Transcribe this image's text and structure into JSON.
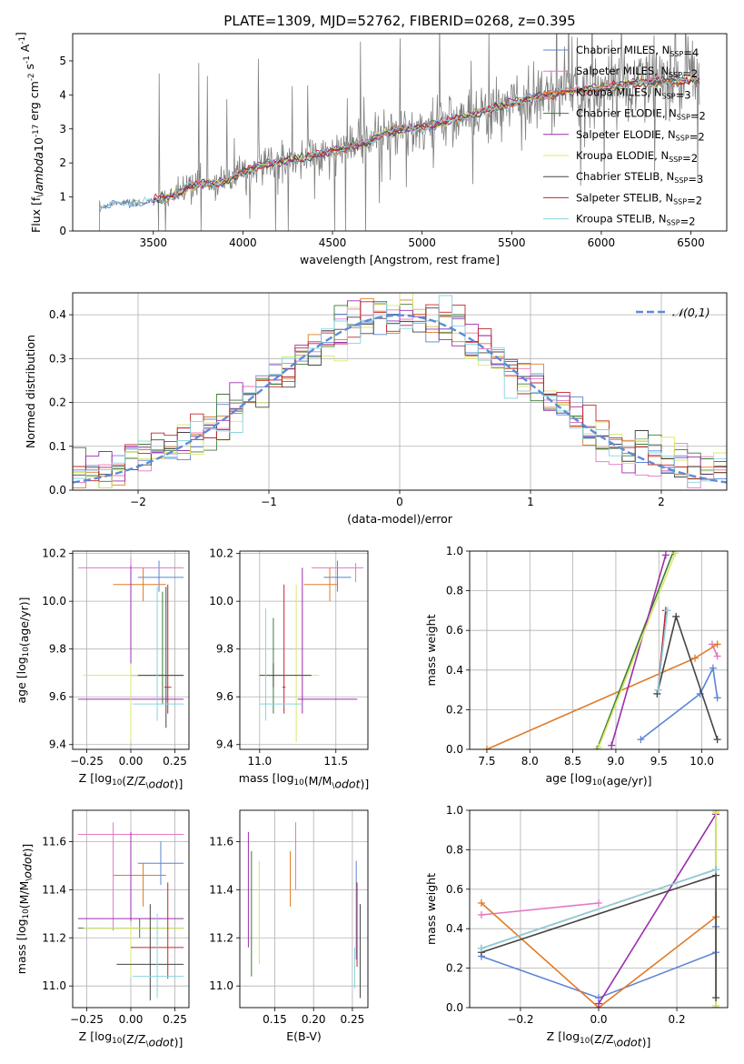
{
  "figure": {
    "title": "PLATE=1309, MJD=52762, FIBERID=0268, z=0.395"
  },
  "colors": {
    "Chabrier MILES": "#5b84d4",
    "Salpeter MILES": "#e377c2",
    "Kroupa MILES": "#e07b27",
    "Chabrier ELODIE": "#3d7a34",
    "Salpeter ELODIE": "#9b2fae",
    "Kroupa ELODIE": "#d8e868",
    "Chabrier STELIB": "#444444",
    "Salpeter STELIB": "#c0272d",
    "Kroupa STELIB": "#88d4e0",
    "gaussian": "#5b8bd8",
    "grid": "#b0b0b0",
    "data": "#808080"
  },
  "chart_data": [
    {
      "id": "spectrum",
      "type": "line",
      "xlabel": "wavelength [Angstrom, rest frame]",
      "ylabel": "Flux [f$_\\lambda$10$^{-17}$ erg cm$^{-2}$ s$^{-1}$ A$^{-1}$]",
      "xlim": [
        3050,
        6700
      ],
      "ylim": [
        0,
        5.8
      ],
      "xticks": [
        3500,
        4000,
        4500,
        5000,
        5500,
        6000,
        6500
      ],
      "yticks": [
        0,
        1,
        2,
        3,
        4,
        5
      ],
      "grid": false,
      "legend_position": "right",
      "model_trend": [
        [
          3200,
          0.7
        ],
        [
          3300,
          0.85
        ],
        [
          3400,
          0.8
        ],
        [
          3500,
          0.9
        ],
        [
          3600,
          1.0
        ],
        [
          3700,
          1.3
        ],
        [
          3800,
          1.4
        ],
        [
          3900,
          1.45
        ],
        [
          4000,
          1.7
        ],
        [
          4100,
          1.95
        ],
        [
          4300,
          2.1
        ],
        [
          4500,
          2.35
        ],
        [
          4700,
          2.6
        ],
        [
          4800,
          2.9
        ],
        [
          5000,
          3.05
        ],
        [
          5200,
          3.3
        ],
        [
          5400,
          3.6
        ],
        [
          5600,
          3.9
        ],
        [
          5800,
          4.1
        ],
        [
          6000,
          4.2
        ],
        [
          6200,
          4.35
        ],
        [
          6400,
          4.4
        ],
        [
          6550,
          4.45
        ]
      ],
      "legend": [
        {
          "label": "Chabrier MILES, N$_{SSP}$=4",
          "color": "Chabrier MILES"
        },
        {
          "label": "Salpeter MILES, N$_{SSP}$=2",
          "color": "Salpeter MILES"
        },
        {
          "label": "Kroupa MILES, N$_{SSP}$=3",
          "color": "Kroupa MILES"
        },
        {
          "label": "Chabrier ELODIE, N$_{SSP}$=2",
          "color": "Chabrier ELODIE"
        },
        {
          "label": "Salpeter ELODIE, N$_{SSP}$=2",
          "color": "Salpeter ELODIE"
        },
        {
          "label": "Kroupa ELODIE, N$_{SSP}$=2",
          "color": "Kroupa ELODIE"
        },
        {
          "label": "Chabrier STELIB, N$_{SSP}$=3",
          "color": "Chabrier STELIB"
        },
        {
          "label": "Salpeter STELIB, N$_{SSP}$=2",
          "color": "Salpeter STELIB"
        },
        {
          "label": "Kroupa STELIB, N$_{SSP}$=2",
          "color": "Kroupa STELIB"
        }
      ]
    },
    {
      "id": "residuals",
      "type": "line",
      "xlabel": "(data-model)/error",
      "ylabel": "Normed distribution",
      "xlim": [
        -2.5,
        2.5
      ],
      "ylim": [
        0,
        0.45
      ],
      "xticks": [
        -2,
        -1,
        0,
        1,
        2
      ],
      "yticks": [
        0.0,
        0.1,
        0.2,
        0.3,
        0.4
      ],
      "grid": true,
      "legend_position": "top-right",
      "gaussian_label": "$\\mathcal{N}(0,1)$",
      "bin_width": 0.1
    },
    {
      "id": "age_vs_Z",
      "type": "scatter",
      "xlabel": "Z [log$_{10}$(Z/Z$_\\odot$)]",
      "ylabel": "age  [log$_{10}$(age/yr)]",
      "xlim": [
        -0.33,
        0.33
      ],
      "ylim": [
        9.38,
        10.21
      ],
      "xticks": [
        -0.25,
        0.0,
        0.25
      ],
      "yticks": [
        9.4,
        9.6,
        9.8,
        10.0,
        10.2
      ],
      "grid": true,
      "points": [
        {
          "s": "Chabrier MILES",
          "x": 0.16,
          "xl": 0.12,
          "xh": 0.14,
          "y": 10.1,
          "yl": 0.06,
          "yh": 0.07
        },
        {
          "s": "Salpeter MILES",
          "x": 0.0,
          "xl": 0.3,
          "xh": 0.3,
          "y": 10.14,
          "yl": 0.1,
          "yh": 0.04
        },
        {
          "s": "Kroupa MILES",
          "x": 0.07,
          "xl": 0.17,
          "xh": 0.13,
          "y": 10.07,
          "yl": 0.07,
          "yh": 0.07
        },
        {
          "s": "Chabrier ELODIE",
          "x": 0.18,
          "xl": 0.18,
          "xh": 0.12,
          "y": 9.69,
          "yl": 0.12,
          "yh": 0.35
        },
        {
          "s": "Salpeter ELODIE",
          "x": 0.0,
          "xl": 0.3,
          "xh": 0.3,
          "y": 9.59,
          "yl": 0.06,
          "yh": 0.56
        },
        {
          "s": "Kroupa ELODIE",
          "x": 0.0,
          "xl": 0.27,
          "xh": 0.3,
          "y": 9.69,
          "yl": 0.28,
          "yh": 0.05
        },
        {
          "s": "Chabrier STELIB",
          "x": 0.2,
          "xl": 0.16,
          "xh": 0.1,
          "y": 9.69,
          "yl": 0.22,
          "yh": 0.37
        },
        {
          "s": "Salpeter STELIB",
          "x": 0.21,
          "xl": 0.02,
          "xh": 0.02,
          "y": 9.64,
          "yl": 0.11,
          "yh": 0.43
        },
        {
          "s": "Kroupa STELIB",
          "x": 0.15,
          "xl": 0.14,
          "xh": 0.15,
          "y": 9.57,
          "yl": 0.07,
          "yh": 0.49
        }
      ]
    },
    {
      "id": "age_vs_mass",
      "type": "scatter",
      "xlabel": "mass [log$_{10}$(M/M$_\\odot$)]",
      "ylabel": "",
      "xlim": [
        10.87,
        11.71
      ],
      "ylim": [
        9.38,
        10.21
      ],
      "xticks": [
        11.0,
        11.5
      ],
      "yticks": [
        9.4,
        9.6,
        9.8,
        10.0,
        10.2
      ],
      "grid": true,
      "points": [
        {
          "s": "Chabrier MILES",
          "x": 11.51,
          "xl": 0.09,
          "xh": 0.09,
          "y": 10.1,
          "yl": 0.06,
          "yh": 0.07
        },
        {
          "s": "Salpeter MILES",
          "x": 11.63,
          "xl": 0.29,
          "xh": 0.05,
          "y": 10.14,
          "yl": 0.06,
          "yh": 0.02
        },
        {
          "s": "Kroupa MILES",
          "x": 11.46,
          "xl": 0.17,
          "xh": 0.05,
          "y": 10.07,
          "yl": 0.07,
          "yh": 0.07
        },
        {
          "s": "Chabrier ELODIE",
          "x": 11.09,
          "xl": 0.03,
          "xh": 0.01,
          "y": 9.69,
          "yl": 0.16,
          "yh": 0.24
        },
        {
          "s": "Salpeter ELODIE",
          "x": 11.28,
          "xl": 0.03,
          "xh": 0.36,
          "y": 9.59,
          "yl": 0.06,
          "yh": 0.55
        },
        {
          "s": "Kroupa ELODIE",
          "x": 11.24,
          "xl": 0.25,
          "xh": 0.15,
          "y": 9.69,
          "yl": 0.28,
          "yh": 0.38
        },
        {
          "s": "Chabrier STELIB",
          "x": 11.09,
          "xl": 0.09,
          "xh": 0.25,
          "y": 9.69,
          "yl": 0.05,
          "yh": 0.05
        },
        {
          "s": "Salpeter STELIB",
          "x": 11.16,
          "xl": 0.01,
          "xh": 0.01,
          "y": 9.64,
          "yl": 0.11,
          "yh": 0.43
        },
        {
          "s": "Kroupa STELIB",
          "x": 11.04,
          "xl": 0.04,
          "xh": 0.24,
          "y": 9.57,
          "yl": 0.07,
          "yh": 0.4
        }
      ]
    },
    {
      "id": "massweight_vs_age",
      "type": "line",
      "xlabel": "age  [log$_{10}$(age/yr)]",
      "ylabel": "mass weight",
      "xlim": [
        7.3,
        10.3
      ],
      "ylim": [
        0,
        1.0
      ],
      "xticks": [
        7.5,
        8.0,
        8.5,
        9.0,
        9.5,
        10.0
      ],
      "yticks": [
        0.0,
        0.2,
        0.4,
        0.6,
        0.8,
        1.0
      ],
      "grid": true,
      "series": [
        {
          "s": "Chabrier MILES",
          "x": [
            9.29,
            9.98,
            10.13,
            10.18
          ],
          "y": [
            0.05,
            0.28,
            0.41,
            0.26
          ]
        },
        {
          "s": "Salpeter MILES",
          "x": [
            10.12,
            10.18
          ],
          "y": [
            0.53,
            0.47
          ]
        },
        {
          "s": "Kroupa MILES",
          "x": [
            7.5,
            9.92,
            10.18
          ],
          "y": [
            0.0,
            0.46,
            0.53
          ]
        },
        {
          "s": "Chabrier ELODIE",
          "x": [
            8.78,
            9.67
          ],
          "y": [
            0.0,
            1.0
          ]
        },
        {
          "s": "Salpeter ELODIE",
          "x": [
            8.95,
            9.58
          ],
          "y": [
            0.02,
            0.98
          ]
        },
        {
          "s": "Kroupa ELODIE",
          "x": [
            8.8,
            9.69
          ],
          "y": [
            0.01,
            0.99
          ]
        },
        {
          "s": "Chabrier STELIB",
          "x": [
            9.48,
            9.7,
            10.18
          ],
          "y": [
            0.28,
            0.67,
            0.05
          ]
        },
        {
          "s": "Salpeter STELIB",
          "x": [
            9.49,
            9.58
          ],
          "y": [
            0.3,
            0.7
          ]
        },
        {
          "s": "Kroupa STELIB",
          "x": [
            9.49,
            9.6
          ],
          "y": [
            0.3,
            0.7
          ]
        }
      ]
    },
    {
      "id": "mass_vs_Z",
      "type": "scatter",
      "xlabel": "Z [log$_{10}$(Z/Z$_\\odot$)]",
      "ylabel": "mass [log$_{10}$(M/M$_\\odot$)]",
      "xlim": [
        -0.33,
        0.33
      ],
      "ylim": [
        10.91,
        11.73
      ],
      "xticks": [
        -0.25,
        0.0,
        0.25
      ],
      "yticks": [
        11.0,
        11.2,
        11.4,
        11.6
      ],
      "grid": true,
      "points": [
        {
          "s": "Chabrier MILES",
          "x": 0.17,
          "xl": 0.13,
          "xh": 0.13,
          "y": 11.51,
          "yl": 0.09,
          "yh": 0.09
        },
        {
          "s": "Salpeter MILES",
          "x": -0.1,
          "xl": 0.2,
          "xh": 0.4,
          "y": 11.63,
          "yl": 0.4,
          "yh": 0.05
        },
        {
          "s": "Kroupa MILES",
          "x": 0.07,
          "xl": 0.17,
          "xh": 0.13,
          "y": 11.46,
          "yl": 0.13,
          "yh": 0.05
        },
        {
          "s": "Chabrier ELODIE",
          "x": 0.05,
          "xl": 0.35,
          "xh": 0.25,
          "y": 11.24,
          "yl": 0.04,
          "yh": 0.04
        },
        {
          "s": "Salpeter ELODIE",
          "x": 0.0,
          "xl": 0.3,
          "xh": 0.3,
          "y": 11.28,
          "yl": 0.01,
          "yh": 0.36
        },
        {
          "s": "Kroupa ELODIE",
          "x": 0.0,
          "xl": 0.27,
          "xh": 0.3,
          "y": 11.24,
          "yl": 0.2,
          "yh": 0.01
        },
        {
          "s": "Chabrier STELIB",
          "x": 0.11,
          "xl": 0.19,
          "xh": 0.19,
          "y": 11.09,
          "yl": 0.15,
          "yh": 0.25
        },
        {
          "s": "Salpeter STELIB",
          "x": 0.21,
          "xl": 0.21,
          "xh": 0.09,
          "y": 11.16,
          "yl": 0.13,
          "yh": 0.27
        },
        {
          "s": "Kroupa STELIB",
          "x": 0.15,
          "xl": 0.14,
          "xh": 0.15,
          "y": 11.04,
          "yl": 0.09,
          "yh": 0.26
        }
      ]
    },
    {
      "id": "mass_vs_ebv",
      "type": "scatter",
      "xlabel": "E(B-V)",
      "ylabel": "",
      "xlim": [
        0.105,
        0.27
      ],
      "ylim": [
        10.91,
        11.73
      ],
      "xticks": [
        0.15,
        0.2,
        0.25
      ],
      "yticks": [
        11.0,
        11.2,
        11.4,
        11.6
      ],
      "grid": true,
      "points": [
        {
          "s": "Chabrier MILES",
          "x": 0.255,
          "xl": 0,
          "xh": 0,
          "y": 11.51,
          "yl": 0.4,
          "yh": 0.01
        },
        {
          "s": "Salpeter MILES",
          "x": 0.177,
          "xl": 0,
          "xh": 0,
          "y": 11.63,
          "yl": 0.23,
          "yh": 0.05
        },
        {
          "s": "Kroupa MILES",
          "x": 0.17,
          "xl": 0,
          "xh": 0,
          "y": 11.46,
          "yl": 0.13,
          "yh": 0.1
        },
        {
          "s": "Chabrier ELODIE",
          "x": 0.12,
          "xl": 0,
          "xh": 0,
          "y": 11.24,
          "yl": 0.2,
          "yh": 0.32
        },
        {
          "s": "Salpeter ELODIE",
          "x": 0.116,
          "xl": 0,
          "xh": 0,
          "y": 11.28,
          "yl": 0.12,
          "yh": 0.36
        },
        {
          "s": "Kroupa ELODIE",
          "x": 0.13,
          "xl": 0,
          "xh": 0,
          "y": 11.24,
          "yl": 0.15,
          "yh": 0.28
        },
        {
          "s": "Chabrier STELIB",
          "x": 0.26,
          "xl": 0,
          "xh": 0,
          "y": 11.09,
          "yl": 0.14,
          "yh": 0.25
        },
        {
          "s": "Salpeter STELIB",
          "x": 0.256,
          "xl": 0,
          "xh": 0,
          "y": 11.16,
          "yl": 0.08,
          "yh": 0.27
        },
        {
          "s": "Kroupa STELIB",
          "x": 0.253,
          "xl": 0,
          "xh": 0,
          "y": 11.04,
          "yl": 0.05,
          "yh": 0.12
        }
      ]
    },
    {
      "id": "massweight_vs_Z",
      "type": "line",
      "xlabel": "Z [log$_{10}$(Z/Z$_\\odot$)]",
      "ylabel": "mass weight",
      "xlim": [
        -0.33,
        0.33
      ],
      "ylim": [
        0,
        1.0
      ],
      "xticks": [
        -0.2,
        0.0,
        0.2
      ],
      "yticks": [
        0.0,
        0.2,
        0.4,
        0.6,
        0.8,
        1.0
      ],
      "grid": true,
      "series": [
        {
          "s": "Chabrier MILES",
          "x": [
            -0.3,
            0.0,
            0.3,
            0.3
          ],
          "y": [
            0.26,
            0.05,
            0.28,
            0.41
          ]
        },
        {
          "s": "Salpeter MILES",
          "x": [
            -0.3,
            0.0
          ],
          "y": [
            0.47,
            0.53
          ]
        },
        {
          "s": "Kroupa MILES",
          "x": [
            -0.3,
            0.0,
            0.3
          ],
          "y": [
            0.53,
            0.0,
            0.46
          ]
        },
        {
          "s": "Chabrier ELODIE",
          "x": [
            0.3,
            0.3
          ],
          "y": [
            0.0,
            1.0
          ]
        },
        {
          "s": "Salpeter ELODIE",
          "x": [
            0.0,
            0.3
          ],
          "y": [
            0.02,
            0.98
          ]
        },
        {
          "s": "Kroupa ELODIE",
          "x": [
            0.3,
            0.3
          ],
          "y": [
            0.01,
            0.99
          ]
        },
        {
          "s": "Chabrier STELIB",
          "x": [
            -0.3,
            0.3,
            0.3
          ],
          "y": [
            0.28,
            0.67,
            0.05
          ]
        },
        {
          "s": "Salpeter STELIB",
          "x": [
            -0.3,
            0.3
          ],
          "y": [
            0.3,
            0.7
          ]
        },
        {
          "s": "Kroupa STELIB",
          "x": [
            -0.3,
            0.3
          ],
          "y": [
            0.3,
            0.7
          ]
        }
      ]
    }
  ]
}
